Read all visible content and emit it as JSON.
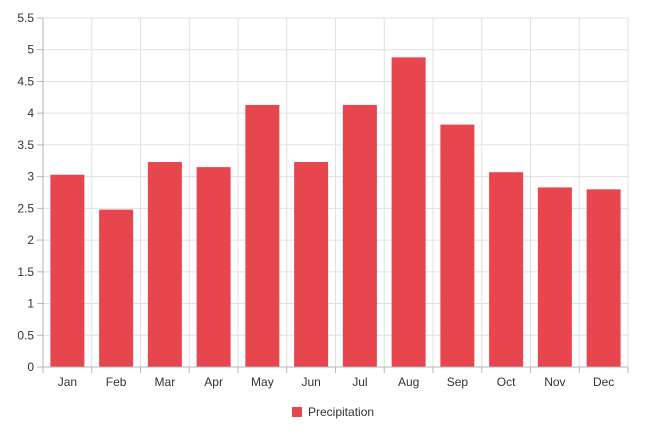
{
  "chart_data": {
    "type": "bar",
    "categories": [
      "Jan",
      "Feb",
      "Mar",
      "Apr",
      "May",
      "Jun",
      "Jul",
      "Aug",
      "Sep",
      "Oct",
      "Nov",
      "Dec"
    ],
    "series": [
      {
        "name": "Precipitation",
        "color": "#e8464e",
        "values": [
          3.03,
          2.48,
          3.23,
          3.15,
          4.13,
          3.23,
          4.13,
          4.88,
          3.82,
          3.07,
          2.83,
          2.8
        ]
      }
    ],
    "title": "",
    "xlabel": "",
    "ylabel": "",
    "ylim": [
      0,
      5.5
    ],
    "y_ticks": [
      "0",
      "0.5",
      "1",
      "1.5",
      "2",
      "2.5",
      "3",
      "3.5",
      "4",
      "4.5",
      "5",
      "5.5"
    ],
    "grid": true,
    "legend_position": "bottom-center"
  }
}
